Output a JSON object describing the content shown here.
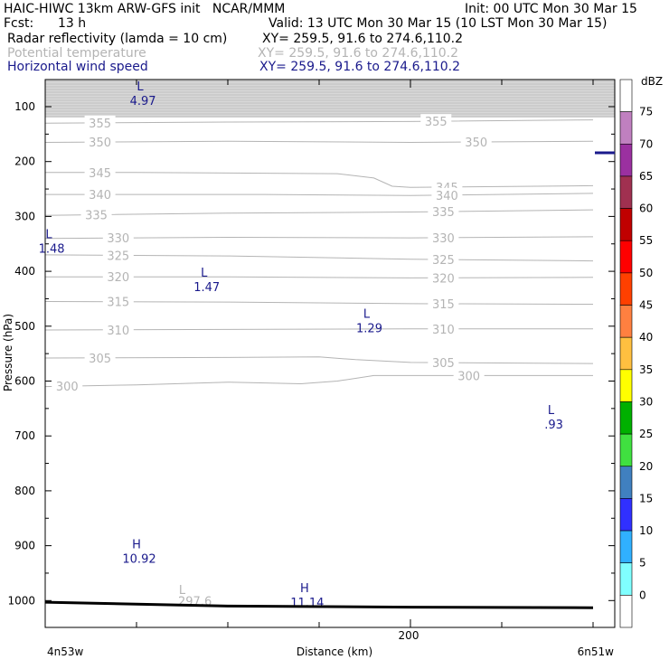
{
  "header": {
    "model_line": "HAIC-HIWC 13km ARW-GFS init   NCAR/MMM",
    "init": "Init: 00 UTC Mon 30 Mar 15",
    "fcst_label": "Fcst:",
    "fcst_value": "13 h",
    "valid": "Valid: 13 UTC Mon 30 Mar 15 (10 LST Mon 30 Mar 15)",
    "fields": [
      {
        "name": "Radar reflectivity (lamda = 10 cm)",
        "xy": "XY= 259.5, 91.6 to 274.6,110.2",
        "color": "#000000"
      },
      {
        "name": "Potential temperature",
        "xy": "XY= 259.5, 91.6 to 274.6,110.2",
        "color": "#b4b4b4"
      },
      {
        "name": "Horizontal wind speed",
        "xy": "XY= 259.5, 91.6 to 274.6,110.2",
        "color": "#1a1a8c"
      }
    ]
  },
  "chart_data": {
    "type": "line",
    "ylabel": "Pressure (hPa)",
    "xlabel": "Distance (km)",
    "x_endpoints": {
      "left": "4n53w",
      "right": "6n51w"
    },
    "xlim_km": [
      0,
      300
    ],
    "x_ticks": [
      200
    ],
    "ylim_hpa": [
      1050,
      50
    ],
    "y_ticks": [
      100,
      200,
      300,
      400,
      500,
      600,
      700,
      800,
      900,
      1000
    ],
    "theta_colour": "#b4b4b4",
    "wind_colour": "#1a1a8c",
    "theta_contours": [
      {
        "label": "355",
        "points": [
          [
            0,
            130
          ],
          [
            100,
            128
          ],
          [
            200,
            127
          ],
          [
            300,
            124
          ]
        ]
      },
      {
        "label": "350",
        "points": [
          [
            0,
            165
          ],
          [
            100,
            163
          ],
          [
            200,
            165
          ],
          [
            300,
            163
          ]
        ]
      },
      {
        "label": "345",
        "points": [
          [
            0,
            220
          ],
          [
            50,
            220
          ],
          [
            160,
            222
          ],
          [
            180,
            230
          ],
          [
            190,
            245
          ],
          [
            200,
            247
          ],
          [
            300,
            244
          ]
        ]
      },
      {
        "label": "340",
        "points": [
          [
            0,
            260
          ],
          [
            120,
            260
          ],
          [
            200,
            262
          ],
          [
            300,
            258
          ]
        ]
      },
      {
        "label": "335",
        "points": [
          [
            0,
            298
          ],
          [
            100,
            294
          ],
          [
            200,
            292
          ],
          [
            300,
            288
          ]
        ]
      },
      {
        "label": "330",
        "points": [
          [
            0,
            340
          ],
          [
            100,
            338
          ],
          [
            200,
            339
          ],
          [
            300,
            337
          ]
        ]
      },
      {
        "label": "325",
        "points": [
          [
            0,
            370
          ],
          [
            100,
            372
          ],
          [
            200,
            378
          ],
          [
            300,
            381
          ]
        ]
      },
      {
        "label": "320",
        "points": [
          [
            0,
            410
          ],
          [
            100,
            410
          ],
          [
            200,
            412
          ],
          [
            300,
            411
          ]
        ]
      },
      {
        "label": "315",
        "points": [
          [
            0,
            455
          ],
          [
            100,
            456
          ],
          [
            200,
            459
          ],
          [
            300,
            460
          ]
        ]
      },
      {
        "label": "310",
        "points": [
          [
            0,
            507
          ],
          [
            100,
            506
          ],
          [
            200,
            505
          ],
          [
            300,
            505
          ]
        ]
      },
      {
        "label": "305",
        "points": [
          [
            0,
            558
          ],
          [
            100,
            557
          ],
          [
            150,
            556
          ],
          [
            170,
            561
          ],
          [
            200,
            566
          ],
          [
            300,
            568
          ]
        ]
      },
      {
        "label": "300",
        "points": [
          [
            0,
            610
          ],
          [
            50,
            607
          ],
          [
            100,
            602
          ],
          [
            140,
            605
          ],
          [
            160,
            600
          ],
          [
            180,
            590
          ],
          [
            200,
            590
          ],
          [
            300,
            590
          ]
        ]
      },
      {
        "label": "297.6",
        "points": []
      }
    ],
    "wind_extrema": [
      {
        "type": "L",
        "value": "4.97",
        "x_km": 52,
        "p_hpa": 70
      },
      {
        "type": "L",
        "value": "1.48",
        "x_km": 2,
        "p_hpa": 340
      },
      {
        "type": "L",
        "value": "1.47",
        "x_km": 87,
        "p_hpa": 410
      },
      {
        "type": "L",
        "value": "1.29",
        "x_km": 176,
        "p_hpa": 485
      },
      {
        "type": "L",
        "value": ".93",
        "x_km": 277,
        "p_hpa": 660
      },
      {
        "type": "H",
        "value": "10.92",
        "x_km": 50,
        "p_hpa": 905
      },
      {
        "type": "H",
        "value": "11.14",
        "x_km": 142,
        "p_hpa": 985
      }
    ],
    "terrain_hpa": [
      [
        0,
        1003
      ],
      [
        100,
        1010
      ],
      [
        200,
        1012
      ],
      [
        300,
        1013
      ]
    ],
    "upper_band_hpa": [
      50,
      100
    ],
    "colorbar": {
      "unit": "dBZ",
      "levels": [
        "75",
        "70",
        "65",
        "60",
        "55",
        "50",
        "45",
        "40",
        "35",
        "30",
        "25",
        "20",
        "15",
        "10",
        "5",
        "0"
      ],
      "colors": [
        "#ffffff",
        "#c080c0",
        "#9b30a0",
        "#a03050",
        "#c00000",
        "#ff0000",
        "#ff4000",
        "#ff8040",
        "#ffc040",
        "#ffff00",
        "#00b000",
        "#40e040",
        "#4080c0",
        "#3030ff",
        "#30b0ff",
        "#80ffff",
        "#ffffff"
      ]
    }
  }
}
